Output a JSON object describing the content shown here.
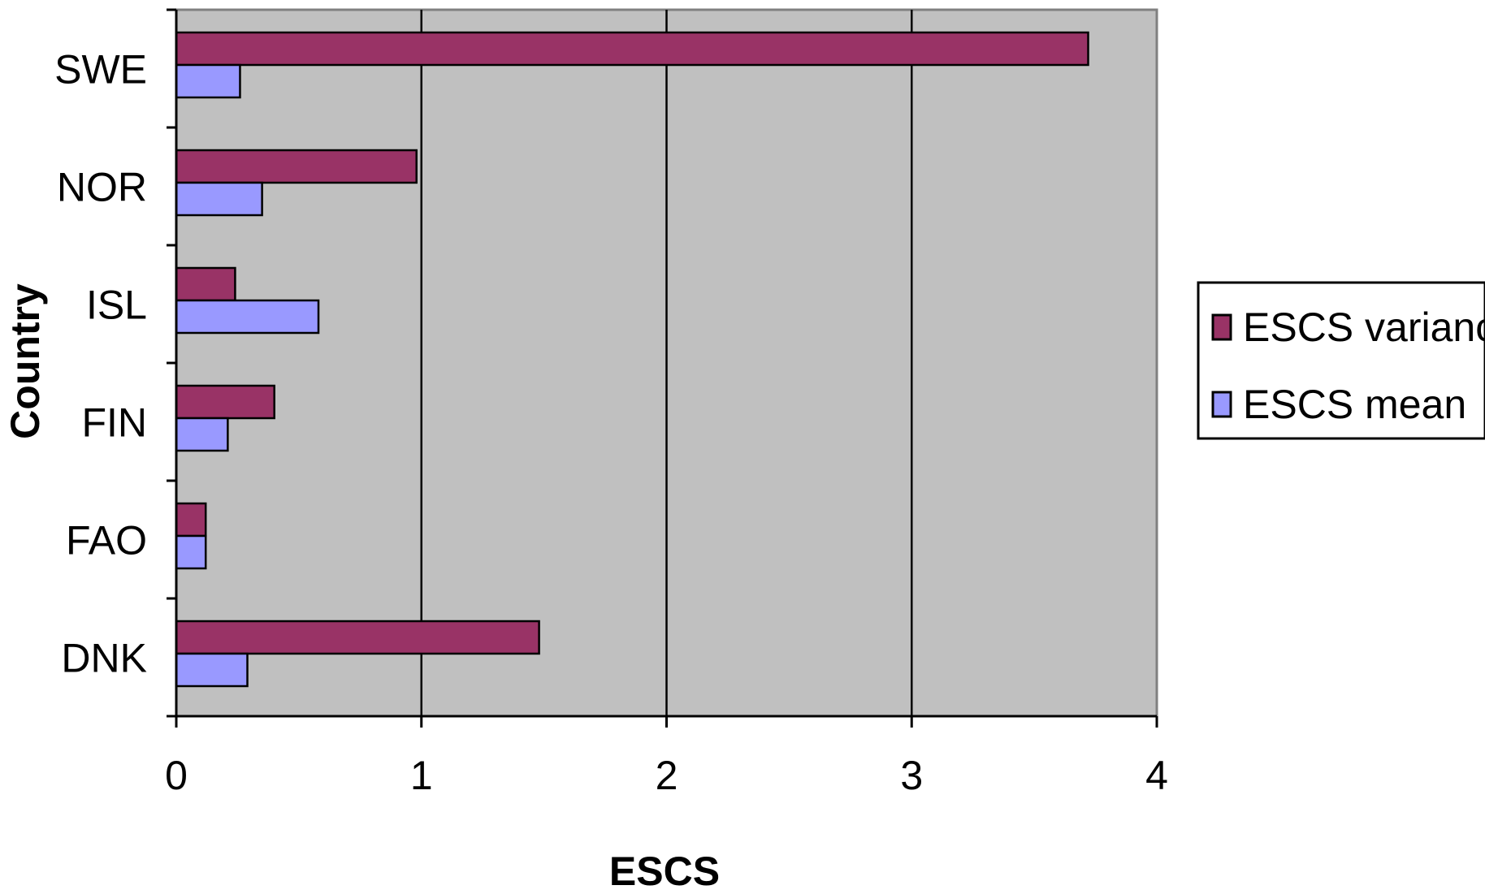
{
  "chart_data": {
    "type": "bar",
    "orientation": "horizontal",
    "title": "",
    "xlabel": "ESCS",
    "ylabel": "Country",
    "xlim": [
      0,
      4
    ],
    "xticks": [
      "0",
      "1",
      "2",
      "3",
      "4"
    ],
    "categories": [
      "SWE",
      "NOR",
      "ISL",
      "FIN",
      "FAO",
      "DNK"
    ],
    "series": [
      {
        "name": "ESCS variance",
        "color": "#993366",
        "values": [
          3.72,
          0.98,
          0.24,
          0.4,
          0.12,
          1.48
        ]
      },
      {
        "name": "ESCS mean",
        "color": "#9999FF",
        "values": [
          0.26,
          0.35,
          0.58,
          0.21,
          0.12,
          0.29
        ]
      }
    ],
    "grid": "vertical major lines",
    "plot_background": "#C0C0C0",
    "legend_position": "right"
  }
}
